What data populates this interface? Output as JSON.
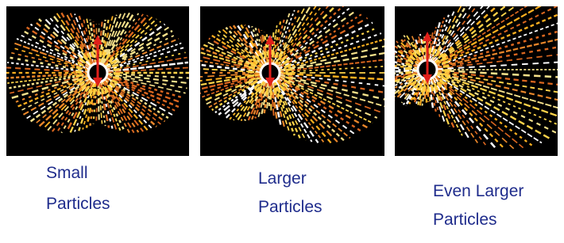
{
  "panels": [
    {
      "caption": [
        "Small",
        "Particles"
      ]
    },
    {
      "caption": [
        "Larger",
        "Particles"
      ]
    },
    {
      "caption": [
        "Even Larger",
        "Particles"
      ]
    }
  ]
}
